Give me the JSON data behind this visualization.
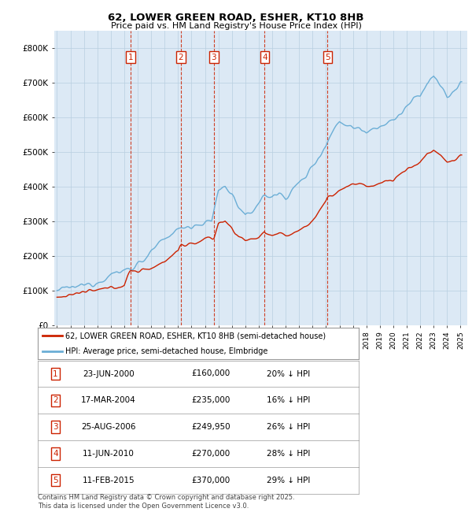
{
  "title": "62, LOWER GREEN ROAD, ESHER, KT10 8HB",
  "subtitle": "Price paid vs. HM Land Registry's House Price Index (HPI)",
  "legend_line1": "62, LOWER GREEN ROAD, ESHER, KT10 8HB (semi-detached house)",
  "legend_line2": "HPI: Average price, semi-detached house, Elmbridge",
  "footer": "Contains HM Land Registry data © Crown copyright and database right 2025.\nThis data is licensed under the Open Government Licence v3.0.",
  "transactions": [
    {
      "num": 1,
      "date": "23-JUN-2000",
      "price": 160000,
      "pct": "20%",
      "x_year": 2000.47
    },
    {
      "num": 2,
      "date": "17-MAR-2004",
      "price": 235000,
      "pct": "16%",
      "x_year": 2004.21
    },
    {
      "num": 3,
      "date": "25-AUG-2006",
      "price": 249950,
      "pct": "26%",
      "x_year": 2006.65
    },
    {
      "num": 4,
      "date": "11-JUN-2010",
      "price": 270000,
      "pct": "28%",
      "x_year": 2010.44
    },
    {
      "num": 5,
      "date": "11-FEB-2015",
      "price": 370000,
      "pct": "29%",
      "x_year": 2015.12
    }
  ],
  "hpi_color": "#6baed6",
  "price_color": "#cc2200",
  "dashed_color": "#cc2200",
  "grid_color": "#b8cfe0",
  "background_color": "#dce9f5",
  "plot_bg_color": "#ffffff",
  "ylim": [
    0,
    850000
  ],
  "xlim": [
    1994.8,
    2025.5
  ],
  "yticks": [
    0,
    100000,
    200000,
    300000,
    400000,
    500000,
    600000,
    700000,
    800000
  ],
  "ytick_labels": [
    "£0",
    "£100K",
    "£200K",
    "£300K",
    "£400K",
    "£500K",
    "£600K",
    "£700K",
    "£800K"
  ],
  "table_data": [
    [
      "1",
      "23-JUN-2000",
      "£160,000",
      "20% ↓ HPI"
    ],
    [
      "2",
      "17-MAR-2004",
      "£235,000",
      "16% ↓ HPI"
    ],
    [
      "3",
      "25-AUG-2006",
      "£249,950",
      "26% ↓ HPI"
    ],
    [
      "4",
      "11-JUN-2010",
      "£270,000",
      "28% ↓ HPI"
    ],
    [
      "5",
      "11-FEB-2015",
      "£370,000",
      "29% ↓ HPI"
    ]
  ]
}
